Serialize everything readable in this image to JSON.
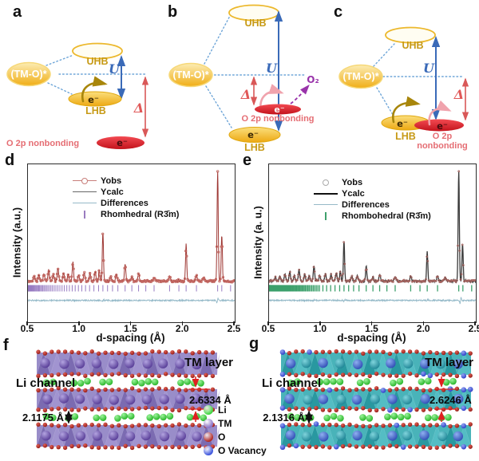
{
  "band_colors": {
    "gold_fill": "#f3b71f",
    "gold_stroke": "#e2a91a",
    "gold_label": "#c79a16",
    "red_fill": "#e6242c",
    "red_label": "#e56d73",
    "blue_arrow": "#3a6ab8",
    "delta_arrow": "#d95858",
    "dotted_line": "#6fa6d8",
    "dark_gold_arrow": "#a8860b",
    "pink_arrow": "#f0a3ad",
    "purple": "#9933aa"
  },
  "band_panels": {
    "a": {
      "label": "a",
      "uhb_label": "UHB",
      "lhb_label": "LHB",
      "tmo_label": "(TM-O)*",
      "u_label": "U",
      "delta_label": "Δ",
      "e_lhb": "e⁻",
      "e_o2p": "e⁻",
      "o2p_label": "O 2p nonbonding"
    },
    "b": {
      "label": "b",
      "uhb_label": "UHB",
      "lhb_label": "LHB",
      "tmo_label": "(TM-O)*",
      "u_label": "U",
      "delta_label": "Δ",
      "e_lhb": "e⁻",
      "e_o2p": "e⁻",
      "o2p_label": "O 2p nonbonding",
      "o2_label": "O₂"
    },
    "c": {
      "label": "c",
      "uhb_label": "UHB",
      "lhb_label": "LHB",
      "tmo_label": "(TM-O)*",
      "u_label": "U",
      "delta_label": "Δ",
      "e_lhb": "e⁻",
      "e_o2p": "e⁻",
      "o2p_line1": "O 2p",
      "o2p_line2": "nonbonding"
    }
  },
  "chart_data": [
    {
      "type": "line",
      "panel_label": "d",
      "xlabel": "d-spacing (Å)",
      "ylabel": "Intensity (a.u.)",
      "xlim": [
        0.5,
        2.5
      ],
      "xticks": [
        0.5,
        1.0,
        1.5,
        2.0,
        2.5
      ],
      "legend": [
        {
          "label": "Yobs",
          "swatch": "circle-line",
          "color": "#c87e7a"
        },
        {
          "label": "Ycalc",
          "swatch": "line",
          "color": "#666666"
        },
        {
          "label": "Differences",
          "swatch": "line",
          "color": "#96bac8"
        },
        {
          "label": "Rhomhedral (R3̄m)",
          "swatch": "tick",
          "color": "#9a7cc0"
        }
      ],
      "peaks": [
        [
          0.56,
          0.045,
          0.01
        ],
        [
          0.605,
          0.055,
          0.01
        ],
        [
          0.655,
          0.07,
          0.01
        ],
        [
          0.7,
          0.1,
          0.01
        ],
        [
          0.745,
          0.06,
          0.01
        ],
        [
          0.79,
          0.12,
          0.01
        ],
        [
          0.845,
          0.075,
          0.01
        ],
        [
          0.89,
          0.06,
          0.01
        ],
        [
          0.935,
          0.17,
          0.009
        ],
        [
          0.99,
          0.055,
          0.01
        ],
        [
          1.045,
          0.08,
          0.01
        ],
        [
          1.1,
          0.07,
          0.01
        ],
        [
          1.15,
          0.085,
          0.01
        ],
        [
          1.19,
          0.1,
          0.009
        ],
        [
          1.225,
          0.44,
          0.008
        ],
        [
          1.3,
          0.05,
          0.01
        ],
        [
          1.355,
          0.06,
          0.01
        ],
        [
          1.44,
          0.16,
          0.009
        ],
        [
          1.505,
          0.045,
          0.01
        ],
        [
          1.57,
          0.07,
          0.01
        ],
        [
          1.72,
          0.03,
          0.012
        ],
        [
          1.87,
          0.05,
          0.01
        ],
        [
          2.03,
          0.34,
          0.008
        ],
        [
          2.13,
          0.05,
          0.01
        ],
        [
          2.2,
          0.03,
          0.012
        ],
        [
          2.335,
          1.0,
          0.008
        ],
        [
          2.375,
          0.42,
          0.008
        ]
      ],
      "bragg_ticks": [
        0.5,
        0.504,
        0.508,
        0.512,
        0.517,
        0.522,
        0.527,
        0.532,
        0.538,
        0.544,
        0.55,
        0.557,
        0.564,
        0.571,
        0.579,
        0.587,
        0.595,
        0.604,
        0.613,
        0.623,
        0.633,
        0.644,
        0.655,
        0.667,
        0.68,
        0.693,
        0.707,
        0.722,
        0.737,
        0.754,
        0.771,
        0.79,
        0.809,
        0.83,
        0.852,
        0.876,
        0.901,
        0.928,
        0.957,
        0.988,
        1.021,
        1.057,
        1.096,
        1.138,
        1.183,
        1.225,
        1.27,
        1.318,
        1.37,
        1.44,
        1.505,
        1.57,
        1.64,
        1.72,
        1.87,
        1.96,
        2.03,
        2.13,
        2.335,
        2.375,
        2.46
      ],
      "diff_spikes": [
        [
          2.333,
          5.5
        ],
        [
          1.228,
          1.8
        ]
      ],
      "colors": {
        "trace": "#9e3733",
        "marker": "#c26660",
        "diff": "#94b9c8",
        "bragg": "#977bc2",
        "frame": "#2b2b2b"
      }
    },
    {
      "type": "line",
      "panel_label": "e",
      "xlabel": "d-spacing (Å)",
      "ylabel": "Intensity (a. u.)",
      "xlim": [
        0.5,
        2.5
      ],
      "xticks": [
        0.5,
        1.0,
        1.5,
        2.0,
        2.5
      ],
      "legend": [
        {
          "label": "Yobs",
          "swatch": "circle",
          "color": "#aaaaaa"
        },
        {
          "label": "Ycalc",
          "swatch": "line-bold",
          "color": "#111111"
        },
        {
          "label": "Differences",
          "swatch": "line",
          "color": "#96bac8"
        },
        {
          "label": "Rhombohedral (R3̄m)",
          "swatch": "tick",
          "color": "#3fa06c"
        }
      ],
      "peaks": [
        [
          0.56,
          0.035,
          0.01
        ],
        [
          0.605,
          0.045,
          0.01
        ],
        [
          0.655,
          0.06,
          0.01
        ],
        [
          0.7,
          0.085,
          0.01
        ],
        [
          0.745,
          0.05,
          0.01
        ],
        [
          0.79,
          0.1,
          0.01
        ],
        [
          0.845,
          0.065,
          0.01
        ],
        [
          0.89,
          0.05,
          0.01
        ],
        [
          0.935,
          0.14,
          0.009
        ],
        [
          0.99,
          0.05,
          0.01
        ],
        [
          1.045,
          0.07,
          0.01
        ],
        [
          1.1,
          0.06,
          0.01
        ],
        [
          1.15,
          0.075,
          0.01
        ],
        [
          1.19,
          0.09,
          0.009
        ],
        [
          1.225,
          0.36,
          0.008
        ],
        [
          1.3,
          0.045,
          0.01
        ],
        [
          1.355,
          0.05,
          0.01
        ],
        [
          1.44,
          0.13,
          0.009
        ],
        [
          1.505,
          0.04,
          0.01
        ],
        [
          1.57,
          0.06,
          0.01
        ],
        [
          1.72,
          0.03,
          0.012
        ],
        [
          1.87,
          0.04,
          0.01
        ],
        [
          2.03,
          0.27,
          0.008
        ],
        [
          2.13,
          0.045,
          0.01
        ],
        [
          2.205,
          0.03,
          0.012
        ],
        [
          2.335,
          1.0,
          0.008
        ],
        [
          2.372,
          0.34,
          0.008
        ]
      ],
      "bragg_ticks": [
        0.5,
        0.502,
        0.504,
        0.506,
        0.508,
        0.51,
        0.512,
        0.515,
        0.517,
        0.519,
        0.522,
        0.525,
        0.527,
        0.53,
        0.532,
        0.535,
        0.538,
        0.541,
        0.544,
        0.547,
        0.55,
        0.553,
        0.557,
        0.56,
        0.564,
        0.567,
        0.571,
        0.575,
        0.579,
        0.583,
        0.587,
        0.591,
        0.595,
        0.599,
        0.604,
        0.608,
        0.613,
        0.618,
        0.623,
        0.628,
        0.633,
        0.638,
        0.644,
        0.649,
        0.655,
        0.661,
        0.667,
        0.673,
        0.68,
        0.686,
        0.693,
        0.7,
        0.707,
        0.714,
        0.722,
        0.729,
        0.737,
        0.745,
        0.754,
        0.762,
        0.771,
        0.78,
        0.79,
        0.799,
        0.809,
        0.819,
        0.83,
        0.841,
        0.852,
        0.864,
        0.876,
        0.888,
        0.901,
        0.914,
        0.928,
        0.942,
        0.957,
        0.972,
        0.988,
        1.021,
        1.057,
        1.096,
        1.138,
        1.183,
        1.225,
        1.27,
        1.318,
        1.37,
        1.44,
        1.505,
        1.57,
        1.64,
        1.72,
        1.87,
        1.96,
        2.03,
        2.13,
        2.335,
        2.375,
        2.46
      ],
      "diff_spikes": [
        [
          2.352,
          9.0
        ],
        [
          2.03,
          2.2
        ],
        [
          1.228,
          2.2
        ],
        [
          0.93,
          1.4
        ]
      ],
      "colors": {
        "trace": "#3a3a3a",
        "marker": "#a86560",
        "diff": "#94b9c8",
        "bragg": "#3da06c",
        "frame": "#2b2b2b"
      }
    }
  ],
  "structures": {
    "f": {
      "panel_label": "f",
      "tm_layer_label": "TM layer",
      "li_channel_label": "Li channel",
      "dim_red": "2.6334 Å",
      "dim_black": "2.1175 Å",
      "colors": {
        "slab": "#8374bd",
        "tri_dark": "#64519f",
        "tri_light": "#a99bd6",
        "tm": "#5d3f9e",
        "o": "#b3251f",
        "li": "#2fc42f"
      }
    },
    "g": {
      "panel_label": "g",
      "tm_layer_label": "TM layer",
      "li_channel_label": "Li channel",
      "dim_red": "2.6246 Å",
      "dim_black": "2.1316 Å",
      "colors": {
        "slab": "#21a2aa",
        "tri_dark": "#0f828c",
        "tri_light": "#5ec6cd",
        "tm_blue": "#3050c0",
        "tm_teal": "#1e8fa0",
        "o": "#b3251f",
        "li": "#2fc42f",
        "vacancy": "#2c3fd0"
      }
    },
    "legend": {
      "items": [
        {
          "label": "Li",
          "color": "#3fd43f"
        },
        {
          "label": "TM",
          "color": "#8a74c9"
        },
        {
          "label": "O",
          "color": "#b22a24"
        },
        {
          "label": "O Vacancy",
          "color": "#3d55dd"
        }
      ]
    }
  }
}
